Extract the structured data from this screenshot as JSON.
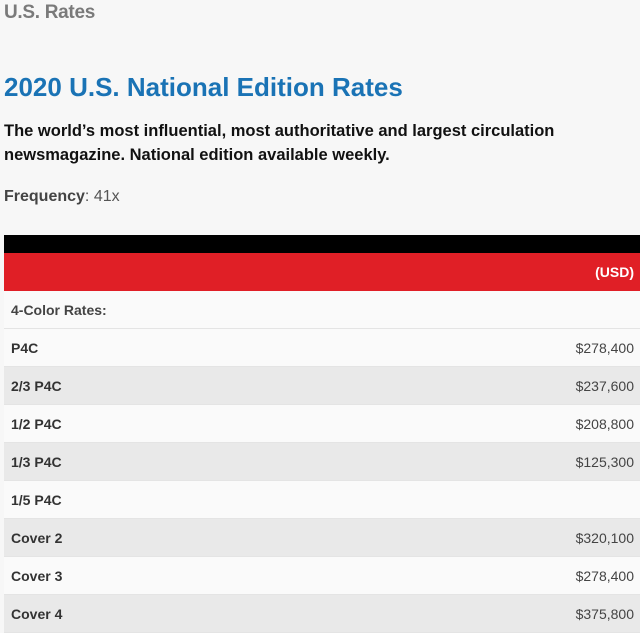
{
  "breadcrumb": "U.S. Rates",
  "title": "2020 U.S. National Edition Rates",
  "description": "The world’s most influential, most authoritative and largest circulation newsmagazine. National edition available weekly.",
  "frequency": {
    "label": "Frequency",
    "value": "41x"
  },
  "table": {
    "currency_header": "(USD)",
    "section_label": "4-Color Rates:",
    "rows": [
      {
        "name": "P4C",
        "price": "$278,400"
      },
      {
        "name": "2/3 P4C",
        "price": "$237,600"
      },
      {
        "name": "1/2 P4C",
        "price": "$208,800"
      },
      {
        "name": "1/3 P4C",
        "price": "$125,300"
      },
      {
        "name": "1/5 P4C",
        "price": ""
      },
      {
        "name": "Cover 2",
        "price": "$320,100"
      },
      {
        "name": "Cover 3",
        "price": "$278,400"
      },
      {
        "name": "Cover 4",
        "price": "$375,800"
      }
    ]
  }
}
